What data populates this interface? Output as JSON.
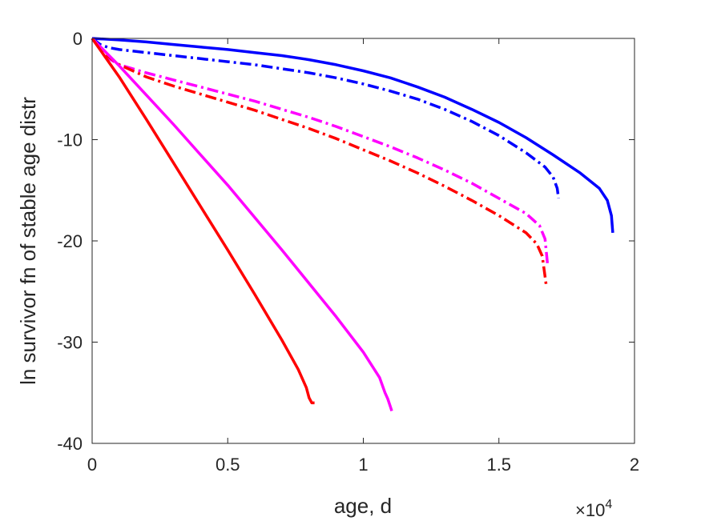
{
  "chart_data": {
    "type": "line",
    "xlabel": "age, d",
    "ylabel": "ln survivor fn of stable age distr",
    "x_exponent_label": "×10",
    "x_exponent_power": "4",
    "x_multiplier": 10000,
    "xlim": [
      0,
      20000
    ],
    "ylim": [
      -40,
      0
    ],
    "x_ticks": [
      0,
      5000,
      10000,
      15000,
      20000
    ],
    "x_tick_labels": [
      "0",
      "0.5",
      "1",
      "1.5",
      "2"
    ],
    "y_ticks": [
      0,
      -10,
      -20,
      -30,
      -40
    ],
    "y_tick_labels": [
      "0",
      "-10",
      "-20",
      "-30",
      "-40"
    ],
    "grid": false,
    "box": true,
    "series": [
      {
        "color": "#0000ff",
        "style": "solid",
        "x": [
          0,
          1000,
          2000,
          3000,
          4000,
          5000,
          6000,
          7000,
          8000,
          9000,
          10000,
          11000,
          12000,
          13000,
          14000,
          15000,
          16000,
          17000,
          18000,
          18700,
          19000,
          19150,
          19200
        ],
        "y": [
          0,
          -0.15,
          -0.35,
          -0.6,
          -0.85,
          -1.1,
          -1.4,
          -1.7,
          -2.1,
          -2.6,
          -3.2,
          -3.9,
          -4.8,
          -5.8,
          -7.0,
          -8.3,
          -9.8,
          -11.5,
          -13.3,
          -14.8,
          -16.0,
          -17.5,
          -19.2
        ]
      },
      {
        "color": "#0000ff",
        "style": "dashdot",
        "x": [
          0,
          300,
          600,
          1000,
          2000,
          3000,
          4000,
          5000,
          6000,
          7000,
          8000,
          9000,
          10000,
          11000,
          12000,
          13000,
          14000,
          15000,
          16000,
          16700,
          17000,
          17150,
          17200
        ],
        "y": [
          0,
          -0.6,
          -0.9,
          -1.1,
          -1.4,
          -1.7,
          -2.0,
          -2.3,
          -2.6,
          -3.0,
          -3.4,
          -3.9,
          -4.5,
          -5.2,
          -6.0,
          -7.0,
          -8.2,
          -9.6,
          -11.3,
          -12.7,
          -13.7,
          -14.8,
          -15.8
        ]
      },
      {
        "color": "#ff00ff",
        "style": "dashdot",
        "x": [
          0,
          500,
          1000,
          2000,
          3000,
          4000,
          5000,
          6000,
          7000,
          8000,
          9000,
          10000,
          11000,
          12000,
          13000,
          14000,
          15000,
          16000,
          16500,
          16700,
          16800
        ],
        "y": [
          0,
          -1.8,
          -2.6,
          -3.4,
          -4.1,
          -4.8,
          -5.5,
          -6.2,
          -7.0,
          -7.8,
          -8.7,
          -9.7,
          -10.7,
          -11.8,
          -13.0,
          -14.3,
          -15.8,
          -17.3,
          -18.5,
          -19.8,
          -22.5
        ]
      },
      {
        "color": "#ff0000",
        "style": "dashdot",
        "x": [
          0,
          500,
          1000,
          2000,
          3000,
          4000,
          5000,
          6000,
          7000,
          8000,
          9000,
          10000,
          11000,
          12000,
          13000,
          14000,
          15000,
          16000,
          16400,
          16600,
          16750
        ],
        "y": [
          0,
          -1.6,
          -2.6,
          -3.8,
          -4.7,
          -5.5,
          -6.3,
          -7.1,
          -8.0,
          -8.9,
          -9.9,
          -11.0,
          -12.1,
          -13.3,
          -14.6,
          -16.0,
          -17.5,
          -19.2,
          -20.3,
          -21.5,
          -24.5
        ]
      },
      {
        "color": "#ff00ff",
        "style": "solid",
        "x": [
          0,
          1000,
          2000,
          3000,
          4000,
          5000,
          6000,
          7000,
          8000,
          9000,
          10000,
          10600,
          10800,
          10900,
          11000,
          11050
        ],
        "y": [
          0,
          -2.7,
          -5.6,
          -8.5,
          -11.5,
          -14.5,
          -17.7,
          -20.9,
          -24.2,
          -27.5,
          -31.0,
          -33.5,
          -35.0,
          -35.6,
          -36.4,
          -36.8
        ]
      },
      {
        "color": "#ff0000",
        "style": "solid",
        "x": [
          0,
          1000,
          2000,
          3000,
          4000,
          5000,
          6000,
          7000,
          7600,
          7900,
          8000,
          8100,
          8200
        ],
        "y": [
          0,
          -3.8,
          -8.0,
          -12.3,
          -16.6,
          -20.9,
          -25.3,
          -29.8,
          -32.7,
          -34.5,
          -35.5,
          -36.0,
          -36.0
        ]
      }
    ]
  }
}
